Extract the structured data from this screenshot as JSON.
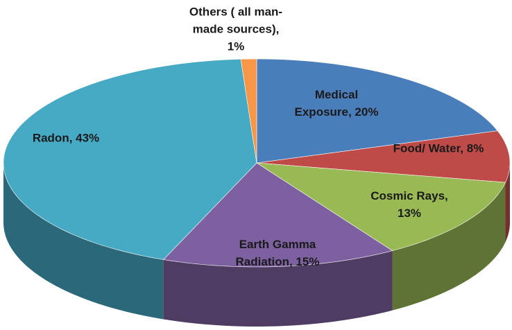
{
  "chart_data": {
    "type": "pie3d",
    "values": [
      20,
      8,
      13,
      15,
      43,
      1
    ],
    "value_labels": [
      [
        "Medical",
        "Exposure, 20%"
      ],
      [
        "Food/ Water, 8%"
      ],
      [
        "Cosmic Rays,",
        "13%"
      ],
      [
        "Earth Gamma",
        "Radiation, 15%"
      ],
      [
        "Radon, 43%"
      ],
      [
        "Others ( all man-",
        "made sources),",
        "1%"
      ]
    ],
    "colors": [
      "#4a7ebb",
      "#be4b48",
      "#98b954",
      "#7d60a0",
      "#46aac5",
      "#f79646"
    ]
  }
}
